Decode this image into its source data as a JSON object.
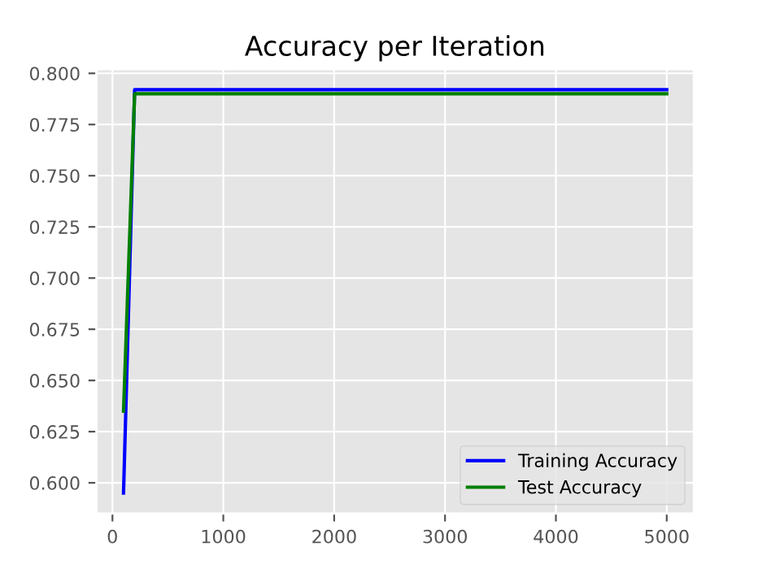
{
  "chart_data": {
    "type": "line",
    "title": "Accuracy per Iteration",
    "series": [
      {
        "name": "Training Accuracy",
        "color": "#0000ff",
        "x": [
          100,
          200,
          5000
        ],
        "values": [
          0.595,
          0.792,
          0.792
        ]
      },
      {
        "name": "Test Accuracy",
        "color": "#008000",
        "x": [
          100,
          200,
          5000
        ],
        "values": [
          0.635,
          0.79,
          0.79
        ]
      }
    ],
    "xlim": [
      -145,
      5245
    ],
    "ylim": [
      0.585,
      0.802
    ],
    "xticks": [
      0,
      1000,
      2000,
      3000,
      4000,
      5000
    ],
    "yticks": [
      {
        "value": 0.6,
        "label": "0.600"
      },
      {
        "value": 0.625,
        "label": "0.625"
      },
      {
        "value": 0.65,
        "label": "0.650"
      },
      {
        "value": 0.675,
        "label": "0.675"
      },
      {
        "value": 0.7,
        "label": "0.700"
      },
      {
        "value": 0.725,
        "label": "0.725"
      },
      {
        "value": 0.75,
        "label": "0.750"
      },
      {
        "value": 0.775,
        "label": "0.775"
      },
      {
        "value": 0.8,
        "label": "0.800"
      }
    ],
    "grid": true,
    "legend": "bottom right",
    "marker": "none",
    "line_style": "solid"
  }
}
